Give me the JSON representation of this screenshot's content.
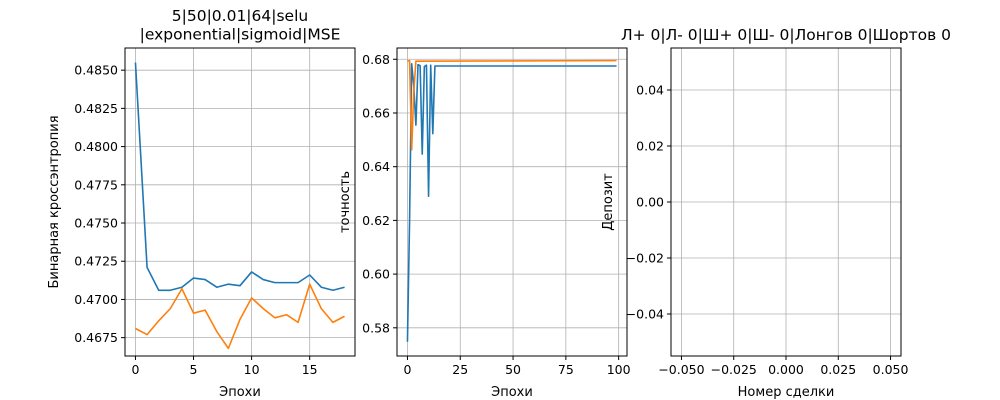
{
  "colors": {
    "blue": "#1f77b4",
    "orange": "#ff7f0e",
    "grid": "#b0b0b0"
  },
  "chart_data": [
    {
      "type": "line",
      "title": "5|50|0.01|64|selu\n|exponential|sigmoid|MSE",
      "xlabel": "Эпохи",
      "ylabel": "Бинарная кроссэнтропия",
      "grid": true,
      "xlim": [
        -0.9,
        18.9
      ],
      "ylim": [
        0.4663,
        0.48645
      ],
      "xticks": [
        0,
        5,
        10,
        15
      ],
      "xtick_labels": [
        "0",
        "5",
        "10",
        "15"
      ],
      "yticks": [
        0.4675,
        0.47,
        0.4725,
        0.475,
        0.4775,
        0.48,
        0.4825,
        0.485
      ],
      "ytick_labels": [
        "0.4675",
        "0.4700",
        "0.4725",
        "0.4750",
        "0.4775",
        "0.4800",
        "0.4825",
        "0.4850"
      ],
      "x": [
        0,
        1,
        2,
        3,
        4,
        5,
        6,
        7,
        8,
        9,
        10,
        11,
        12,
        13,
        14,
        15,
        16,
        17,
        18
      ],
      "series": [
        {
          "color": "#1f77b4",
          "values": [
            0.4855,
            0.4721,
            0.4706,
            0.4706,
            0.4708,
            0.4714,
            0.4713,
            0.4708,
            0.471,
            0.4709,
            0.4718,
            0.4713,
            0.4711,
            0.4711,
            0.4711,
            0.4716,
            0.4708,
            0.4706,
            0.4708
          ]
        },
        {
          "color": "#ff7f0e",
          "values": [
            0.4681,
            0.4677,
            0.4686,
            0.4694,
            0.4707,
            0.4691,
            0.4693,
            0.4679,
            0.4668,
            0.4687,
            0.4701,
            0.4694,
            0.4688,
            0.469,
            0.4685,
            0.471,
            0.4694,
            0.4685,
            0.4689
          ]
        }
      ]
    },
    {
      "type": "line",
      "title": "",
      "xlabel": "Эпохи",
      "ylabel": "точность",
      "grid": true,
      "xlim": [
        -4.95,
        103.95
      ],
      "ylim": [
        0.5695,
        0.6842
      ],
      "xticks": [
        0,
        25,
        50,
        75,
        100
      ],
      "xtick_labels": [
        "0",
        "25",
        "50",
        "75",
        "100"
      ],
      "yticks": [
        0.58,
        0.6,
        0.62,
        0.64,
        0.66,
        0.68
      ],
      "ytick_labels": [
        "0.58",
        "0.60",
        "0.62",
        "0.64",
        "0.66",
        "0.68"
      ],
      "series": [
        {
          "color": "#1f77b4",
          "points": [
            [
              0,
              0.5748
            ],
            [
              1,
              0.62
            ],
            [
              2,
              0.6783
            ],
            [
              3,
              0.67
            ],
            [
              4,
              0.6555
            ],
            [
              5,
              0.678
            ],
            [
              6,
              0.6776
            ],
            [
              7,
              0.6447
            ],
            [
              8,
              0.6773
            ],
            [
              9,
              0.6778
            ],
            [
              10,
              0.629
            ],
            [
              11,
              0.6778
            ],
            [
              12,
              0.6523
            ],
            [
              13,
              0.6775
            ],
            [
              99,
              0.6775
            ]
          ]
        },
        {
          "color": "#ff7f0e",
          "points": [
            [
              0,
              0.6793
            ],
            [
              1,
              0.6795
            ],
            [
              2,
              0.6463
            ],
            [
              3,
              0.668
            ],
            [
              4,
              0.6793
            ],
            [
              99,
              0.6795
            ]
          ]
        }
      ]
    },
    {
      "type": "line",
      "title": "Л+ 0|Л- 0|Ш+ 0|Ш- 0|Лонгов 0|Шортов 0",
      "xlabel": "Номер сделки",
      "ylabel": "Депозит",
      "grid": true,
      "xlim": [
        -0.055,
        0.055
      ],
      "ylim": [
        -0.055,
        0.055
      ],
      "xticks": [
        -0.05,
        -0.025,
        0.0,
        0.025,
        0.05
      ],
      "xtick_labels": [
        "−0.050",
        "−0.025",
        "0.000",
        "0.025",
        "0.050"
      ],
      "yticks": [
        -0.04,
        -0.02,
        0.0,
        0.02,
        0.04
      ],
      "ytick_labels": [
        "−0.04",
        "−0.02",
        "0.00",
        "0.02",
        "0.04"
      ],
      "series": []
    }
  ]
}
